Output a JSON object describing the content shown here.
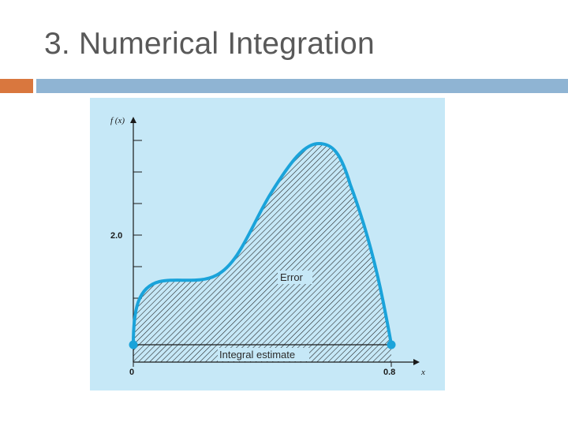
{
  "slide": {
    "title": "3. Numerical Integration"
  },
  "colors": {
    "title": "#595959",
    "accent_orange": "#D9773E",
    "accent_blue": "#8FB4D3",
    "panel_background": "#C6E8F7",
    "curve": "#1AA3DA",
    "hatch": "#1a1a1a"
  },
  "figure": {
    "y_axis_label": "f (x)",
    "x_axis_label": "x",
    "x_tick_start": "0",
    "x_tick_end": "0.8",
    "y_tick_label": "2.0",
    "error_label": "Error",
    "integral_label": "Integral estimate"
  }
}
